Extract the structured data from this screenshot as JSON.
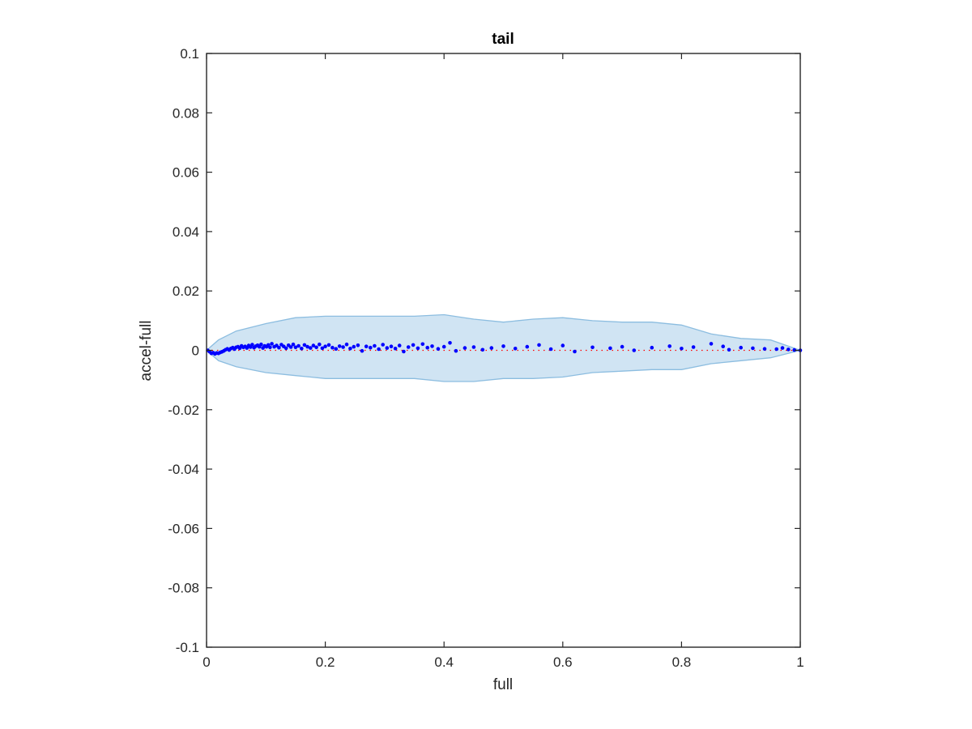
{
  "chart_data": {
    "type": "scatter",
    "title": "tail",
    "xlabel": "full",
    "ylabel": "accel-full",
    "xlim": [
      0,
      1
    ],
    "ylim": [
      -0.1,
      0.1
    ],
    "xticks": [
      "0",
      "0.2",
      "0.4",
      "0.6",
      "0.8",
      "1"
    ],
    "xtick_values": [
      0,
      0.2,
      0.4,
      0.6,
      0.8,
      1
    ],
    "yticks": [
      "-0.1",
      "-0.08",
      "-0.06",
      "-0.04",
      "-0.02",
      "0",
      "0.02",
      "0.04",
      "0.06",
      "0.08",
      "0.1"
    ],
    "ytick_values": [
      -0.1,
      -0.08,
      -0.06,
      -0.04,
      -0.02,
      0,
      0.02,
      0.04,
      0.06,
      0.08,
      0.1
    ],
    "grid": false,
    "colors": {
      "band_fill": "#d0e4f3",
      "band_edge": "#8cbde0",
      "points": "#0000ff",
      "reference_line": "#ff0000",
      "axes": "#262626"
    },
    "band": {
      "x": [
        0,
        0.02,
        0.05,
        0.1,
        0.15,
        0.2,
        0.25,
        0.3,
        0.35,
        0.4,
        0.45,
        0.5,
        0.55,
        0.6,
        0.65,
        0.7,
        0.75,
        0.8,
        0.85,
        0.9,
        0.95,
        1.0
      ],
      "upper": [
        0,
        0.0035,
        0.0065,
        0.009,
        0.011,
        0.0115,
        0.0115,
        0.0115,
        0.0115,
        0.012,
        0.0105,
        0.0095,
        0.0105,
        0.011,
        0.01,
        0.0095,
        0.0095,
        0.0085,
        0.0055,
        0.004,
        0.0035,
        0
      ],
      "lower": [
        0,
        -0.0035,
        -0.0055,
        -0.0075,
        -0.0085,
        -0.0095,
        -0.0095,
        -0.0095,
        -0.0095,
        -0.0105,
        -0.0105,
        -0.0095,
        -0.0095,
        -0.009,
        -0.0075,
        -0.007,
        -0.0065,
        -0.0065,
        -0.0045,
        -0.0035,
        -0.0025,
        0
      ]
    },
    "reference_line": {
      "y": 0,
      "style": "dotted"
    },
    "points": {
      "x": [
        0.002,
        0.005,
        0.008,
        0.011,
        0.014,
        0.017,
        0.02,
        0.023,
        0.026,
        0.029,
        0.032,
        0.035,
        0.038,
        0.041,
        0.044,
        0.047,
        0.05,
        0.053,
        0.056,
        0.059,
        0.062,
        0.065,
        0.068,
        0.071,
        0.074,
        0.077,
        0.08,
        0.083,
        0.086,
        0.089,
        0.092,
        0.095,
        0.098,
        0.101,
        0.104,
        0.107,
        0.11,
        0.114,
        0.118,
        0.122,
        0.126,
        0.13,
        0.134,
        0.138,
        0.142,
        0.146,
        0.15,
        0.155,
        0.16,
        0.165,
        0.17,
        0.175,
        0.18,
        0.185,
        0.19,
        0.195,
        0.2,
        0.206,
        0.212,
        0.218,
        0.224,
        0.23,
        0.236,
        0.242,
        0.248,
        0.255,
        0.262,
        0.269,
        0.276,
        0.283,
        0.29,
        0.297,
        0.304,
        0.311,
        0.318,
        0.325,
        0.332,
        0.34,
        0.348,
        0.356,
        0.364,
        0.372,
        0.38,
        0.39,
        0.4,
        0.41,
        0.42,
        0.435,
        0.45,
        0.465,
        0.48,
        0.5,
        0.52,
        0.54,
        0.56,
        0.58,
        0.6,
        0.62,
        0.65,
        0.68,
        0.7,
        0.72,
        0.75,
        0.78,
        0.8,
        0.82,
        0.85,
        0.87,
        0.88,
        0.9,
        0.92,
        0.94,
        0.96,
        0.97,
        0.98,
        0.99,
        1.0
      ],
      "y": [
        0.0,
        -0.0005,
        -0.001,
        -0.0008,
        -0.0012,
        -0.0009,
        -0.001,
        -0.0007,
        -0.0005,
        -0.0002,
        0.0002,
        0.0005,
        0.0001,
        0.0006,
        0.0009,
        0.0004,
        0.001,
        0.0012,
        0.0007,
        0.0015,
        0.001,
        0.0013,
        0.0008,
        0.0016,
        0.0011,
        0.0019,
        0.0009,
        0.0014,
        0.0017,
        0.0012,
        0.002,
        0.0008,
        0.0015,
        0.0012,
        0.0018,
        0.001,
        0.0022,
        0.0012,
        0.0016,
        0.0009,
        0.0019,
        0.0013,
        0.0007,
        0.0017,
        0.0011,
        0.002,
        0.001,
        0.0015,
        0.0006,
        0.0018,
        0.0012,
        0.0008,
        0.0016,
        0.001,
        0.002,
        0.0007,
        0.0013,
        0.0018,
        0.0009,
        0.0005,
        0.0014,
        0.0011,
        0.002,
        0.0006,
        0.0012,
        0.0017,
        -0.0002,
        0.0013,
        0.0009,
        0.0015,
        0.0004,
        0.0019,
        0.0008,
        0.0013,
        0.0006,
        0.0016,
        -0.0004,
        0.0011,
        0.0018,
        0.0007,
        0.0021,
        0.0009,
        0.0014,
        0.0005,
        0.0012,
        0.0025,
        -0.0002,
        0.0008,
        0.0011,
        0.0002,
        0.0008,
        0.0014,
        0.0006,
        0.0012,
        0.0018,
        0.0004,
        0.0016,
        -0.0004,
        0.001,
        0.0007,
        0.0012,
        0.0,
        0.0009,
        0.0014,
        0.0006,
        0.0011,
        0.0022,
        0.0013,
        0.0002,
        0.0009,
        0.0007,
        0.0005,
        0.0004,
        0.0008,
        0.0003,
        0.0001,
        0.0
      ]
    }
  }
}
